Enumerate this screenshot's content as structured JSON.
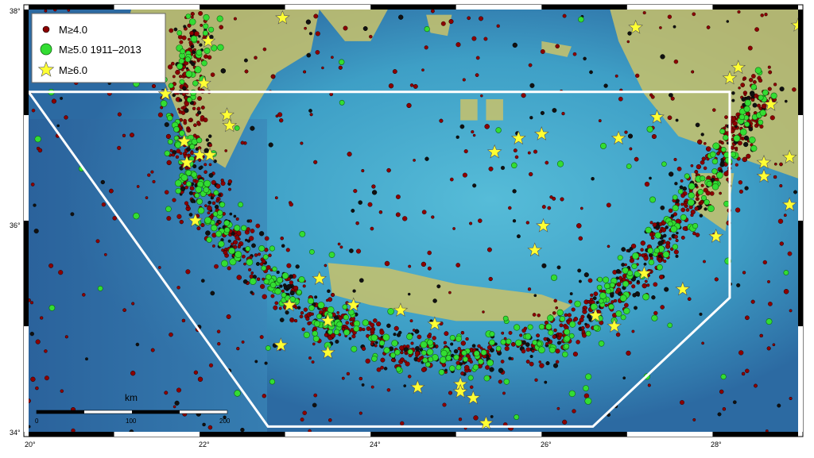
{
  "map": {
    "lon_ticks": [
      "20°",
      "22°",
      "24°",
      "26°",
      "28°"
    ],
    "lat_ticks": [
      "38°",
      "36°",
      "34°"
    ],
    "lon_range": [
      20,
      29
    ],
    "lat_range": [
      34,
      38
    ]
  },
  "legend": {
    "items": [
      {
        "label": "M≥4.0",
        "symbol": "dot-dark-red",
        "color": "#8b0000"
      },
      {
        "label": "M≥5.0  1911–2013",
        "symbol": "circle-green",
        "color": "#33dd33"
      },
      {
        "label": "M≥6.0",
        "symbol": "star-yellow",
        "color": "#ffff33"
      }
    ]
  },
  "scale_bar": {
    "unit": "km",
    "labels": [
      "0",
      "100",
      "200"
    ]
  },
  "study_area": {
    "outline_color": "#ffffff",
    "vertices_lonlat": [
      [
        20,
        37.22
      ],
      [
        28.2,
        37.22
      ],
      [
        28.2,
        35.27
      ],
      [
        26.6,
        34.05
      ],
      [
        22.8,
        34.05
      ],
      [
        20,
        37.22
      ]
    ]
  },
  "colors": {
    "deep_sea": "#2f6fa8",
    "mid_sea": "#3aa0c8",
    "shallow_sea": "#7fd0d8",
    "land": "#c9c26a",
    "frame": "#000000"
  },
  "stars_lonlat": [
    [
      21.05,
      37.58
    ],
    [
      21.6,
      37.2
    ],
    [
      21.82,
      36.75
    ],
    [
      21.85,
      36.55
    ],
    [
      22.0,
      36.62
    ],
    [
      22.12,
      36.62
    ],
    [
      21.95,
      36.0
    ],
    [
      22.32,
      37.0
    ],
    [
      22.35,
      36.9
    ],
    [
      22.1,
      37.7
    ],
    [
      22.05,
      37.3
    ],
    [
      22.97,
      37.92
    ],
    [
      23.4,
      35.45
    ],
    [
      23.5,
      35.05
    ],
    [
      23.05,
      35.2
    ],
    [
      22.95,
      34.82
    ],
    [
      23.5,
      34.75
    ],
    [
      23.8,
      35.2
    ],
    [
      24.35,
      35.15
    ],
    [
      24.75,
      35.02
    ],
    [
      24.55,
      34.42
    ],
    [
      25.05,
      34.45
    ],
    [
      25.05,
      34.38
    ],
    [
      25.2,
      34.32
    ],
    [
      25.35,
      34.08
    ],
    [
      25.45,
      36.65
    ],
    [
      25.73,
      36.78
    ],
    [
      26.0,
      36.82
    ],
    [
      26.02,
      35.95
    ],
    [
      25.92,
      35.72
    ],
    [
      26.63,
      35.1
    ],
    [
      26.85,
      35.0
    ],
    [
      27.2,
      35.5
    ],
    [
      27.35,
      36.98
    ],
    [
      27.1,
      37.83
    ],
    [
      26.9,
      36.78
    ],
    [
      27.65,
      35.35
    ],
    [
      28.04,
      35.85
    ],
    [
      28.2,
      37.35
    ],
    [
      28.3,
      37.45
    ],
    [
      28.68,
      37.1
    ],
    [
      28.6,
      36.55
    ],
    [
      28.6,
      36.42
    ],
    [
      28.9,
      36.6
    ],
    [
      28.9,
      36.15
    ],
    [
      29.0,
      37.85
    ]
  ],
  "land_patches": [
    {
      "name": "peloponnese-north",
      "pts": [
        [
          21.2,
          38.0
        ],
        [
          23.4,
          38.0
        ],
        [
          23.3,
          37.6
        ],
        [
          22.9,
          37.4
        ],
        [
          22.6,
          37.0
        ],
        [
          22.3,
          36.5
        ],
        [
          21.9,
          36.7
        ],
        [
          21.6,
          37.3
        ],
        [
          21.1,
          37.7
        ]
      ]
    },
    {
      "name": "attica",
      "pts": [
        [
          23.4,
          38.0
        ],
        [
          24.2,
          38.0
        ],
        [
          24.0,
          37.7
        ],
        [
          23.7,
          37.7
        ]
      ]
    },
    {
      "name": "crete",
      "pts": [
        [
          23.5,
          35.6
        ],
        [
          24.2,
          35.55
        ],
        [
          25.0,
          35.4
        ],
        [
          26.0,
          35.3
        ],
        [
          26.35,
          35.2
        ],
        [
          26.1,
          35.05
        ],
        [
          25.0,
          35.05
        ],
        [
          24.0,
          35.2
        ],
        [
          23.55,
          35.3
        ]
      ]
    },
    {
      "name": "anatolia",
      "pts": [
        [
          26.8,
          38.0
        ],
        [
          29.0,
          38.0
        ],
        [
          29.0,
          36.4
        ],
        [
          28.3,
          36.6
        ],
        [
          27.6,
          36.8
        ],
        [
          27.2,
          37.2
        ],
        [
          26.9,
          37.7
        ]
      ]
    },
    {
      "name": "rhodes",
      "pts": [
        [
          27.75,
          36.45
        ],
        [
          28.25,
          36.45
        ],
        [
          28.15,
          35.9
        ],
        [
          27.8,
          36.1
        ]
      ]
    },
    {
      "name": "naxos",
      "pts": [
        [
          25.35,
          37.15
        ],
        [
          25.55,
          37.15
        ],
        [
          25.55,
          36.95
        ],
        [
          25.35,
          36.95
        ]
      ]
    },
    {
      "name": "paros",
      "pts": [
        [
          25.05,
          37.15
        ],
        [
          25.25,
          37.15
        ],
        [
          25.25,
          36.95
        ],
        [
          25.05,
          36.95
        ]
      ]
    },
    {
      "name": "andros",
      "pts": [
        [
          24.65,
          37.95
        ],
        [
          24.95,
          37.95
        ],
        [
          24.9,
          37.75
        ],
        [
          24.7,
          37.78
        ]
      ]
    },
    {
      "name": "ikaria",
      "pts": [
        [
          26.0,
          37.7
        ],
        [
          26.35,
          37.65
        ],
        [
          26.3,
          37.55
        ],
        [
          26.0,
          37.6
        ]
      ]
    }
  ]
}
